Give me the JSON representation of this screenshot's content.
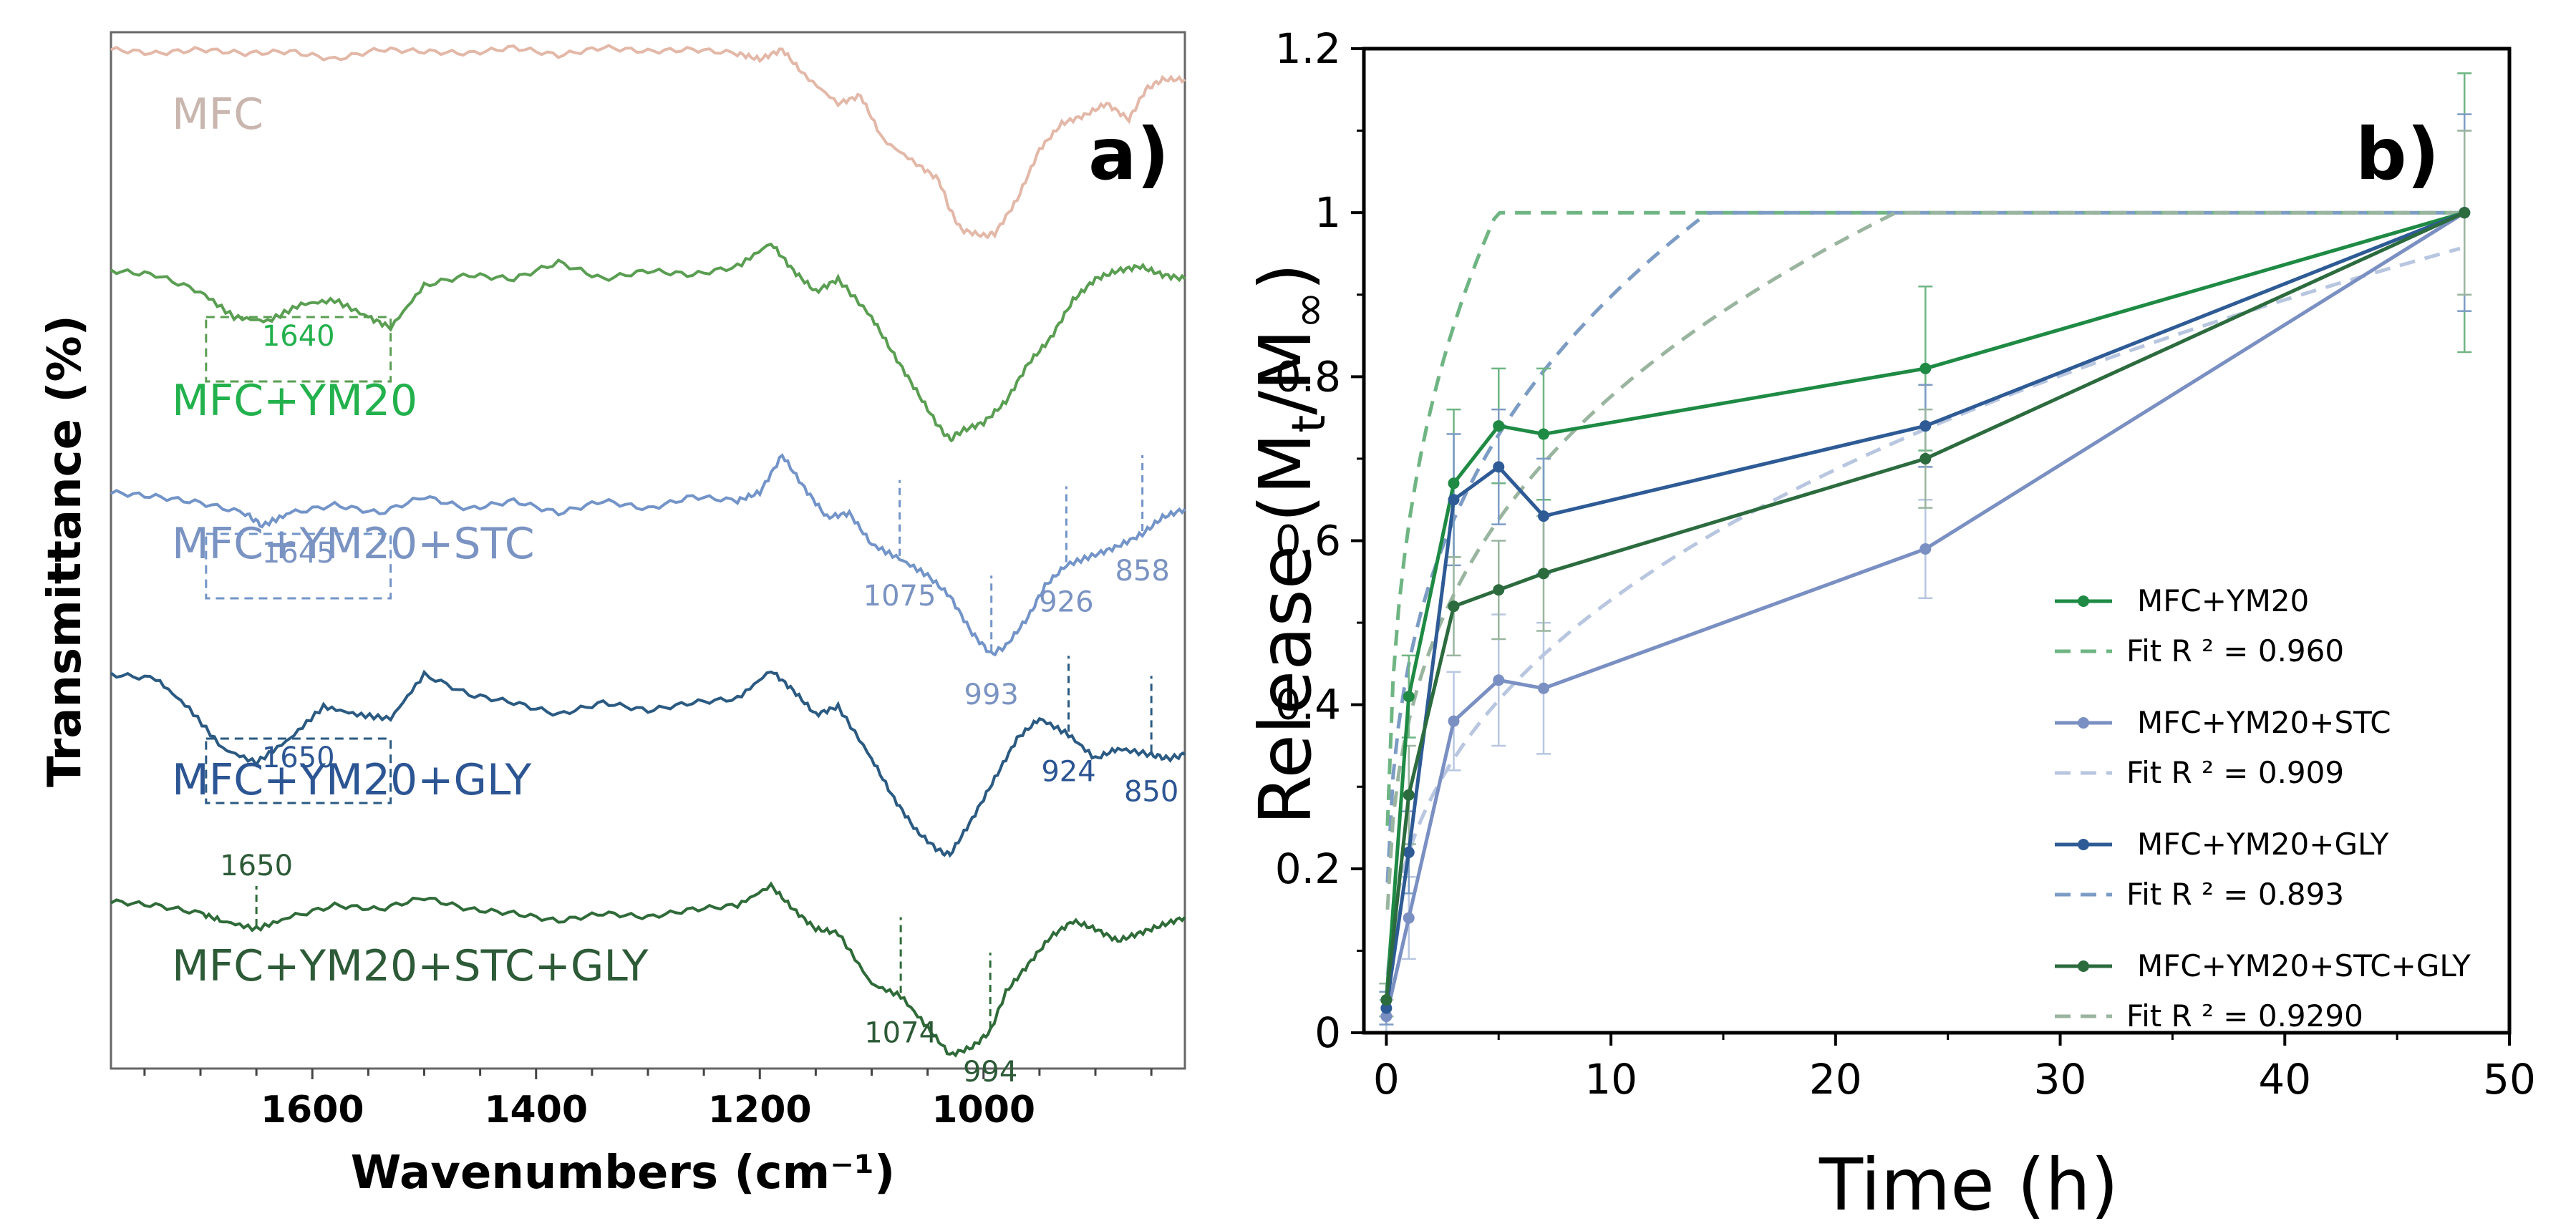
{
  "chart_data": [
    {
      "type": "line",
      "panel": "a)",
      "kind": "FTIR spectra (stacked, offset)",
      "xlabel": "Wavenumbers (cm⁻¹)",
      "ylabel": "Transmittance (%)",
      "xlim": [
        1780,
        820
      ],
      "x_reversed": true,
      "x_ticks": [
        1600,
        1400,
        1200,
        1000
      ],
      "series": [
        {
          "name": "MFC",
          "color": "#e3b8a8",
          "label_color": "#c9b6ae",
          "points": [
            [
              1780,
              0.95
            ],
            [
              1740,
              0.93
            ],
            [
              1700,
              0.95
            ],
            [
              1660,
              0.93
            ],
            [
              1620,
              0.94
            ],
            [
              1580,
              0.9
            ],
            [
              1540,
              0.95
            ],
            [
              1500,
              0.94
            ],
            [
              1460,
              0.93
            ],
            [
              1420,
              0.96
            ],
            [
              1380,
              0.92
            ],
            [
              1340,
              0.96
            ],
            [
              1300,
              0.94
            ],
            [
              1260,
              0.95
            ],
            [
              1220,
              0.93
            ],
            [
              1200,
              0.9
            ],
            [
              1180,
              0.95
            ],
            [
              1160,
              0.82
            ],
            [
              1130,
              0.68
            ],
            [
              1110,
              0.72
            ],
            [
              1090,
              0.5
            ],
            [
              1060,
              0.38
            ],
            [
              1040,
              0.3
            ],
            [
              1030,
              0.15
            ],
            [
              1020,
              0.05
            ],
            [
              1000,
              0.02
            ],
            [
              990,
              0.03
            ],
            [
              970,
              0.2
            ],
            [
              950,
              0.45
            ],
            [
              930,
              0.58
            ],
            [
              910,
              0.62
            ],
            [
              890,
              0.68
            ],
            [
              870,
              0.6
            ],
            [
              855,
              0.75
            ],
            [
              840,
              0.8
            ],
            [
              820,
              0.8
            ]
          ],
          "annotations": []
        },
        {
          "name": "MFC+YM20",
          "color": "#5a9e52",
          "label_color": "#22b14c",
          "points": [
            [
              1780,
              0.82
            ],
            [
              1740,
              0.8
            ],
            [
              1700,
              0.72
            ],
            [
              1670,
              0.6
            ],
            [
              1640,
              0.58
            ],
            [
              1610,
              0.66
            ],
            [
              1580,
              0.68
            ],
            [
              1550,
              0.6
            ],
            [
              1530,
              0.55
            ],
            [
              1500,
              0.75
            ],
            [
              1460,
              0.8
            ],
            [
              1420,
              0.78
            ],
            [
              1380,
              0.86
            ],
            [
              1340,
              0.78
            ],
            [
              1300,
              0.82
            ],
            [
              1260,
              0.8
            ],
            [
              1220,
              0.84
            ],
            [
              1190,
              0.95
            ],
            [
              1170,
              0.82
            ],
            [
              1150,
              0.72
            ],
            [
              1130,
              0.78
            ],
            [
              1100,
              0.6
            ],
            [
              1080,
              0.42
            ],
            [
              1060,
              0.25
            ],
            [
              1040,
              0.08
            ],
            [
              1030,
              0.02
            ],
            [
              1020,
              0.06
            ],
            [
              1000,
              0.1
            ],
            [
              980,
              0.2
            ],
            [
              960,
              0.38
            ],
            [
              940,
              0.5
            ],
            [
              920,
              0.68
            ],
            [
              900,
              0.78
            ],
            [
              880,
              0.82
            ],
            [
              860,
              0.84
            ],
            [
              840,
              0.8
            ],
            [
              820,
              0.78
            ]
          ],
          "annotations": [
            {
              "text": "1640",
              "x": 1640,
              "box": [
                1695,
                1530
              ]
            }
          ]
        },
        {
          "name": "MFC+YM20+STC",
          "color": "#7394c8",
          "label_color": "#7a93c2",
          "points": [
            [
              1780,
              0.8
            ],
            [
              1740,
              0.78
            ],
            [
              1700,
              0.75
            ],
            [
              1660,
              0.7
            ],
            [
              1645,
              0.64
            ],
            [
              1620,
              0.7
            ],
            [
              1580,
              0.74
            ],
            [
              1540,
              0.7
            ],
            [
              1500,
              0.78
            ],
            [
              1460,
              0.72
            ],
            [
              1420,
              0.76
            ],
            [
              1380,
              0.7
            ],
            [
              1340,
              0.76
            ],
            [
              1300,
              0.72
            ],
            [
              1260,
              0.78
            ],
            [
              1220,
              0.76
            ],
            [
              1200,
              0.8
            ],
            [
              1180,
              0.98
            ],
            [
              1160,
              0.82
            ],
            [
              1140,
              0.68
            ],
            [
              1120,
              0.7
            ],
            [
              1100,
              0.55
            ],
            [
              1075,
              0.48
            ],
            [
              1050,
              0.4
            ],
            [
              1030,
              0.3
            ],
            [
              1010,
              0.12
            ],
            [
              993,
              0.02
            ],
            [
              980,
              0.06
            ],
            [
              960,
              0.2
            ],
            [
              945,
              0.35
            ],
            [
              926,
              0.45
            ],
            [
              900,
              0.5
            ],
            [
              880,
              0.54
            ],
            [
              858,
              0.6
            ],
            [
              840,
              0.68
            ],
            [
              820,
              0.72
            ]
          ],
          "annotations": [
            {
              "text": "1645",
              "x": 1645,
              "box": [
                1695,
                1530
              ]
            },
            {
              "text": "1075",
              "x": 1075
            },
            {
              "text": "993",
              "x": 993
            },
            {
              "text": "926",
              "x": 926
            },
            {
              "text": "858",
              "x": 858
            }
          ]
        },
        {
          "name": "MFC+YM20+GLY",
          "color": "#2b5a82",
          "label_color": "#2c5593",
          "points": [
            [
              1780,
              0.92
            ],
            [
              1740,
              0.9
            ],
            [
              1710,
              0.75
            ],
            [
              1680,
              0.55
            ],
            [
              1650,
              0.48
            ],
            [
              1620,
              0.6
            ],
            [
              1590,
              0.76
            ],
            [
              1560,
              0.72
            ],
            [
              1530,
              0.7
            ],
            [
              1500,
              0.92
            ],
            [
              1460,
              0.82
            ],
            [
              1420,
              0.78
            ],
            [
              1380,
              0.72
            ],
            [
              1340,
              0.78
            ],
            [
              1300,
              0.74
            ],
            [
              1260,
              0.78
            ],
            [
              1220,
              0.8
            ],
            [
              1190,
              0.94
            ],
            [
              1170,
              0.84
            ],
            [
              1150,
              0.72
            ],
            [
              1130,
              0.76
            ],
            [
              1100,
              0.5
            ],
            [
              1080,
              0.3
            ],
            [
              1060,
              0.14
            ],
            [
              1040,
              0.04
            ],
            [
              1030,
              0.02
            ],
            [
              1010,
              0.2
            ],
            [
              990,
              0.4
            ],
            [
              970,
              0.6
            ],
            [
              950,
              0.7
            ],
            [
              924,
              0.62
            ],
            [
              900,
              0.5
            ],
            [
              880,
              0.55
            ],
            [
              850,
              0.52
            ],
            [
              835,
              0.5
            ],
            [
              820,
              0.52
            ]
          ],
          "annotations": [
            {
              "text": "1650",
              "x": 1650,
              "box": [
                1695,
                1530
              ]
            },
            {
              "text": "924",
              "x": 924
            },
            {
              "text": "850",
              "x": 850
            }
          ]
        },
        {
          "name": "MFC+YM20+STC+GLY",
          "color": "#2f6b39",
          "label_color": "#2d5a37",
          "points": [
            [
              1780,
              0.82
            ],
            [
              1740,
              0.8
            ],
            [
              1700,
              0.76
            ],
            [
              1680,
              0.72
            ],
            [
              1650,
              0.68
            ],
            [
              1620,
              0.74
            ],
            [
              1580,
              0.8
            ],
            [
              1540,
              0.78
            ],
            [
              1500,
              0.84
            ],
            [
              1460,
              0.78
            ],
            [
              1420,
              0.76
            ],
            [
              1380,
              0.72
            ],
            [
              1340,
              0.76
            ],
            [
              1300,
              0.74
            ],
            [
              1260,
              0.78
            ],
            [
              1220,
              0.8
            ],
            [
              1190,
              0.9
            ],
            [
              1170,
              0.78
            ],
            [
              1150,
              0.68
            ],
            [
              1130,
              0.66
            ],
            [
              1100,
              0.4
            ],
            [
              1074,
              0.34
            ],
            [
              1050,
              0.18
            ],
            [
              1030,
              0.04
            ],
            [
              1010,
              0.08
            ],
            [
              994,
              0.16
            ],
            [
              980,
              0.36
            ],
            [
              960,
              0.5
            ],
            [
              940,
              0.64
            ],
            [
              920,
              0.72
            ],
            [
              900,
              0.68
            ],
            [
              880,
              0.62
            ],
            [
              860,
              0.66
            ],
            [
              840,
              0.7
            ],
            [
              820,
              0.74
            ]
          ],
          "annotations": [
            {
              "text": "1650",
              "x": 1650
            },
            {
              "text": "1074",
              "x": 1074
            },
            {
              "text": "994",
              "x": 994
            }
          ]
        }
      ]
    },
    {
      "type": "line",
      "panel": "b)",
      "xlabel": "Time (h)",
      "ylabel_main": "Release (M",
      "ylabel_sub1": "t",
      "ylabel_mid": "/M",
      "ylabel_sub2": "∞",
      "ylabel_end": ")",
      "xlim": [
        -1,
        50
      ],
      "ylim": [
        0,
        1.2
      ],
      "x_ticks": [
        0,
        10,
        20,
        30,
        40,
        50
      ],
      "y_ticks": [
        0,
        0.2,
        0.4,
        0.6,
        0.8,
        1,
        1.2
      ],
      "y_tick_labels": [
        "0",
        "0.2",
        "0.4",
        "0.6",
        "0.8",
        "1",
        "1.2"
      ],
      "x": [
        0,
        1,
        3,
        5,
        7,
        24,
        48
      ],
      "series": [
        {
          "name": "MFC+YM20",
          "color": "#1e8a44",
          "fit_color": "#6fb583",
          "fit_label": "Fit R ² = 0.960",
          "values": [
            0.04,
            0.41,
            0.67,
            0.74,
            0.73,
            0.81,
            1.0
          ],
          "errors": [
            0.02,
            0.05,
            0.09,
            0.07,
            0.08,
            0.1,
            0.17
          ],
          "fit_k": 0.62,
          "fit_n": 0.3
        },
        {
          "name": "MFC+YM20+STC",
          "color": "#7a8fc2",
          "fit_color": "#b8c6e0",
          "fit_label": "Fit R ² = 0.909",
          "values": [
            0.02,
            0.14,
            0.38,
            0.43,
            0.42,
            0.59,
            1.0
          ],
          "errors": [
            0.02,
            0.05,
            0.06,
            0.08,
            0.08,
            0.06,
            0.1
          ],
          "fit_k": 0.22,
          "fit_n": 0.38
        },
        {
          "name": "MFC+YM20+GLY",
          "color": "#2e5b95",
          "fit_color": "#7c9cc4",
          "fit_label": "Fit R ² = 0.893",
          "values": [
            0.03,
            0.22,
            0.65,
            0.69,
            0.63,
            0.74,
            1.0
          ],
          "errors": [
            0.02,
            0.05,
            0.08,
            0.07,
            0.07,
            0.05,
            0.12
          ],
          "fit_k": 0.45,
          "fit_n": 0.3
        },
        {
          "name": "MFC+YM20+STC+GLY",
          "color": "#2c6b3e",
          "fit_color": "#9ab59f",
          "fit_label": "Fit R ² = 0.9290",
          "values": [
            0.04,
            0.29,
            0.52,
            0.54,
            0.56,
            0.7,
            1.0
          ],
          "errors": [
            0.02,
            0.06,
            0.06,
            0.06,
            0.07,
            0.06,
            0.1
          ],
          "fit_k": 0.38,
          "fit_n": 0.31
        }
      ]
    }
  ]
}
